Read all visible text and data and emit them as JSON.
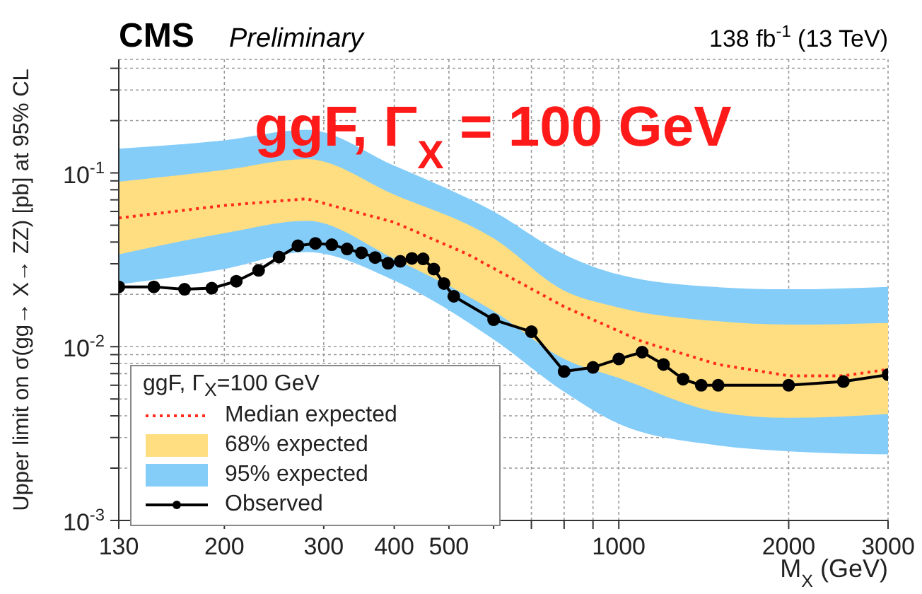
{
  "chart_data": {
    "type": "line",
    "title": "CMS",
    "subtitle": "Preliminary",
    "xlabel": "M$_{X}$ (GeV)",
    "ylabel": "Upper limit on σ(gg→ X→ ZZ) [pb] at 95% CL",
    "legend_title": "ggF, Γ$_{X}$=100 GeV",
    "annotations": [
      "138 fb$^{-1}$ (13 TeV)",
      "ggF, Γ$_{X}$ = 100 GeV"
    ],
    "log": "xy",
    "grid": true,
    "legend": "bottom left",
    "xlim": [
      130,
      3000
    ],
    "xticks": [
      130,
      200,
      300,
      400,
      500,
      {
        "value": 600,
        "label": null
      },
      {
        "value": 700,
        "label": null
      },
      {
        "value": 800,
        "label": null
      },
      {
        "value": 900,
        "label": null
      },
      1000,
      2000,
      3000
    ],
    "ylim": [
      0.001,
      0.45
    ],
    "yticks": [
      {
        "value": 0.001,
        "label": "10$^{-3}$"
      },
      {
        "value": 0.002,
        "label": null
      },
      {
        "value": 0.003,
        "label": null
      },
      {
        "value": 0.004,
        "label": null
      },
      {
        "value": 0.005,
        "label": null
      },
      {
        "value": 0.006,
        "label": null
      },
      {
        "value": 0.007,
        "label": null
      },
      {
        "value": 0.008,
        "label": null
      },
      {
        "value": 0.009,
        "label": null
      },
      {
        "value": 0.01,
        "label": "10$^{-2}$"
      },
      {
        "value": 0.02,
        "label": null
      },
      {
        "value": 0.03,
        "label": null
      },
      {
        "value": 0.04,
        "label": null
      },
      {
        "value": 0.05,
        "label": null
      },
      {
        "value": 0.06,
        "label": null
      },
      {
        "value": 0.07,
        "label": null
      },
      {
        "value": 0.08,
        "label": null
      },
      {
        "value": 0.09,
        "label": null
      },
      {
        "value": 0.1,
        "label": "10$^{-1}$"
      },
      {
        "value": 0.2,
        "label": null
      },
      {
        "value": 0.3,
        "label": null
      },
      {
        "value": 0.4,
        "label": null
      }
    ],
    "series": [
      {
        "name": "Median expected",
        "type": "line",
        "line_style": "dotted",
        "color": "#ff2a1a",
        "x": [
          130,
          200,
          280,
          400,
          540,
          800,
          1100,
          1500,
          2000,
          2500,
          3000
        ],
        "values": [
          0.055,
          0.065,
          0.071,
          0.052,
          0.034,
          0.017,
          0.0107,
          0.0079,
          0.0068,
          0.0068,
          0.0074
        ]
      },
      {
        "name": "68% expected",
        "type": "line",
        "color": "#fede80",
        "x": [
          130,
          200,
          280,
          400,
          600,
          800,
          1000,
          1500,
          2000,
          3000
        ],
        "values": [
          null,
          null,
          null,
          null,
          null,
          null,
          null,
          null,
          null,
          null
        ],
        "lower": [
          0.034,
          0.045,
          0.053,
          0.032,
          0.016,
          0.0085,
          0.0066,
          0.0042,
          0.0039,
          0.0041
        ],
        "upper": [
          0.089,
          0.104,
          0.12,
          0.075,
          0.042,
          0.021,
          0.0168,
          0.014,
          0.0134,
          0.0137
        ]
      },
      {
        "name": "95% expected",
        "type": "line",
        "color": "#85cdf9",
        "x": [
          130,
          200,
          280,
          400,
          600,
          800,
          1000,
          1500,
          2000,
          3000
        ],
        "values": [
          null,
          null,
          null,
          null,
          null,
          null,
          null,
          null,
          null,
          null
        ],
        "lower": [
          0.0228,
          0.028,
          0.035,
          0.024,
          0.011,
          0.0055,
          0.0036,
          0.0027,
          0.0025,
          0.0024
        ],
        "upper": [
          0.138,
          0.154,
          0.177,
          0.11,
          0.06,
          0.034,
          0.026,
          0.022,
          0.0214,
          0.0221
        ]
      },
      {
        "name": "Observed",
        "type": "line",
        "marker": "circle",
        "line_style": "solid",
        "color": "#000000",
        "x": [
          130,
          150,
          170,
          190,
          210,
          230,
          250,
          270,
          290,
          310,
          330,
          350,
          370,
          390,
          410,
          430,
          450,
          470,
          490,
          510,
          600,
          700,
          800,
          900,
          1000,
          1100,
          1200,
          1300,
          1400,
          1500,
          2000,
          2500,
          3000
        ],
        "values": [
          0.0221,
          0.0221,
          0.0214,
          0.0217,
          0.0238,
          0.0275,
          0.0328,
          0.0381,
          0.0393,
          0.0386,
          0.0365,
          0.0347,
          0.0326,
          0.0302,
          0.031,
          0.0322,
          0.032,
          0.028,
          0.0231,
          0.0195,
          0.0143,
          0.0122,
          0.0072,
          0.0076,
          0.0085,
          0.0093,
          0.0079,
          0.0065,
          0.006,
          0.006,
          0.006,
          0.0063,
          0.0069
        ]
      }
    ]
  }
}
